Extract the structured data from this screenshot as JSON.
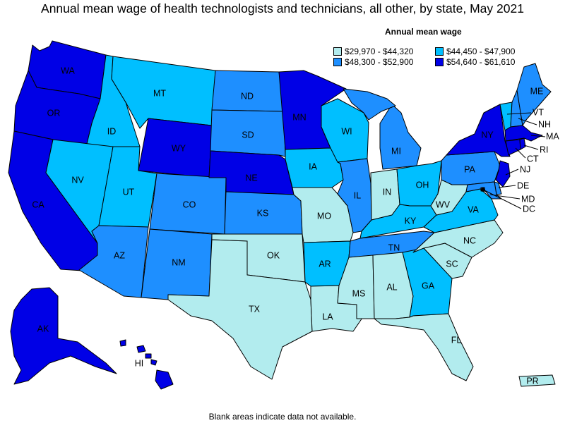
{
  "title": "Annual mean wage of health technologists and technicians, all other, by state, May 2021",
  "legend": {
    "title": "Annual mean wage",
    "items": [
      {
        "label": "$29,970 - $44,320",
        "color": "#b2ecee"
      },
      {
        "label": "$44,450 - $47,900",
        "color": "#00bfff"
      },
      {
        "label": "$48,300 - $52,900",
        "color": "#1e8fff"
      },
      {
        "label": "$54,640 - $61,610",
        "color": "#0000e6"
      }
    ]
  },
  "footnote": "Blank areas indicate data not available.",
  "states": {
    "WA": {
      "label": "WA",
      "bin": 3
    },
    "OR": {
      "label": "OR",
      "bin": 3
    },
    "CA": {
      "label": "CA",
      "bin": 3
    },
    "ID": {
      "label": "ID",
      "bin": 1
    },
    "NV": {
      "label": "NV",
      "bin": 1
    },
    "MT": {
      "label": "MT",
      "bin": 1
    },
    "WY": {
      "label": "WY",
      "bin": 3
    },
    "UT": {
      "label": "UT",
      "bin": 1
    },
    "AZ": {
      "label": "AZ",
      "bin": 2
    },
    "CO": {
      "label": "CO",
      "bin": 2
    },
    "NM": {
      "label": "NM",
      "bin": 2
    },
    "ND": {
      "label": "ND",
      "bin": 2
    },
    "SD": {
      "label": "SD",
      "bin": 2
    },
    "NE": {
      "label": "NE",
      "bin": 3
    },
    "KS": {
      "label": "KS",
      "bin": 2
    },
    "OK": {
      "label": "OK",
      "bin": 0
    },
    "TX": {
      "label": "TX",
      "bin": 0
    },
    "MN": {
      "label": "MN",
      "bin": 3
    },
    "IA": {
      "label": "IA",
      "bin": 1
    },
    "MO": {
      "label": "MO",
      "bin": 0
    },
    "AR": {
      "label": "AR",
      "bin": 1
    },
    "LA": {
      "label": "LA",
      "bin": 0
    },
    "WI": {
      "label": "WI",
      "bin": 1
    },
    "IL": {
      "label": "IL",
      "bin": 2
    },
    "MI": {
      "label": "MI",
      "bin": 2
    },
    "IN": {
      "label": "IN",
      "bin": 0
    },
    "OH": {
      "label": "OH",
      "bin": 1
    },
    "KY": {
      "label": "KY",
      "bin": 1
    },
    "TN": {
      "label": "TN",
      "bin": 2
    },
    "MS": {
      "label": "MS",
      "bin": 0
    },
    "AL": {
      "label": "AL",
      "bin": 0
    },
    "GA": {
      "label": "GA",
      "bin": 1
    },
    "FL": {
      "label": "FL",
      "bin": 0
    },
    "SC": {
      "label": "SC",
      "bin": 0
    },
    "NC": {
      "label": "NC",
      "bin": 0
    },
    "VA": {
      "label": "VA",
      "bin": 1
    },
    "WV": {
      "label": "WV",
      "bin": 0
    },
    "PA": {
      "label": "PA",
      "bin": 2
    },
    "NY": {
      "label": "NY",
      "bin": 3
    },
    "VT": {
      "label": "VT",
      "bin": 1
    },
    "NH": {
      "label": "NH",
      "bin": 2
    },
    "ME": {
      "label": "ME",
      "bin": 2
    },
    "MA": {
      "label": "MA",
      "bin": 3
    },
    "RI": {
      "label": "RI",
      "bin": 3
    },
    "CT": {
      "label": "CT",
      "bin": 3
    },
    "NJ": {
      "label": "NJ",
      "bin": 3
    },
    "DE": {
      "label": "DE",
      "bin": 2
    },
    "MD": {
      "label": "MD",
      "bin": 2
    },
    "DC": {
      "label": "DC",
      "bin": 0
    },
    "AK": {
      "label": "AK",
      "bin": 3
    },
    "HI": {
      "label": "HI",
      "bin": 3
    },
    "PR": {
      "label": "PR",
      "bin": 0
    }
  }
}
